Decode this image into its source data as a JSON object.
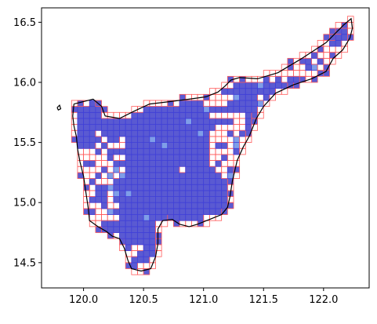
{
  "chart_data": {
    "type": "heatmap",
    "title": "",
    "xlabel": "",
    "ylabel": "",
    "xlim": [
      119.65,
      122.38
    ],
    "ylim": [
      14.29,
      16.62
    ],
    "x_ticks": [
      "120.0",
      "120.5",
      "121.0",
      "121.5",
      "122.0"
    ],
    "y_ticks": [
      "14.5",
      "15.0",
      "15.5",
      "16.0",
      "16.5"
    ],
    "grid": false,
    "legend": "none",
    "cell_size_deg": 0.05,
    "cell_fill_color": "#5a5ad2",
    "cell_fill_light_color": "#7f9ee8",
    "cell_edge_color": "#ff5a5a",
    "inner_cell_edge_color": "#4040d8",
    "boundary_color": "#000000",
    "boundary": [
      [
        119.92,
        15.82
      ],
      [
        120.08,
        15.86
      ],
      [
        120.15,
        15.8
      ],
      [
        120.18,
        15.72
      ],
      [
        120.3,
        15.7
      ],
      [
        120.42,
        15.76
      ],
      [
        120.55,
        15.82
      ],
      [
        120.72,
        15.84
      ],
      [
        120.88,
        15.86
      ],
      [
        121.02,
        15.88
      ],
      [
        121.12,
        15.92
      ],
      [
        121.18,
        15.97
      ],
      [
        121.23,
        16.02
      ],
      [
        121.3,
        16.04
      ],
      [
        121.45,
        16.03
      ],
      [
        121.62,
        16.08
      ],
      [
        121.82,
        16.2
      ],
      [
        122.02,
        16.33
      ],
      [
        122.17,
        16.48
      ],
      [
        122.23,
        16.53
      ],
      [
        122.24,
        16.45
      ],
      [
        122.22,
        16.37
      ],
      [
        122.16,
        16.27
      ],
      [
        122.08,
        16.2
      ],
      [
        122.02,
        16.09
      ],
      [
        121.9,
        16.03
      ],
      [
        121.75,
        15.98
      ],
      [
        121.6,
        15.91
      ],
      [
        121.5,
        15.8
      ],
      [
        121.44,
        15.7
      ],
      [
        121.38,
        15.55
      ],
      [
        121.33,
        15.46
      ],
      [
        121.28,
        15.35
      ],
      [
        121.24,
        15.18
      ],
      [
        121.22,
        15.05
      ],
      [
        121.2,
        14.96
      ],
      [
        121.15,
        14.9
      ],
      [
        121.05,
        14.86
      ],
      [
        120.95,
        14.82
      ],
      [
        120.88,
        14.8
      ],
      [
        120.8,
        14.82
      ],
      [
        120.74,
        14.86
      ],
      [
        120.66,
        14.85
      ],
      [
        120.62,
        14.78
      ],
      [
        120.62,
        14.66
      ],
      [
        120.6,
        14.55
      ],
      [
        120.56,
        14.45
      ],
      [
        120.48,
        14.43
      ],
      [
        120.4,
        14.45
      ],
      [
        120.37,
        14.52
      ],
      [
        120.34,
        14.62
      ],
      [
        120.3,
        14.7
      ],
      [
        120.24,
        14.72
      ],
      [
        120.19,
        14.76
      ],
      [
        120.12,
        14.8
      ],
      [
        120.05,
        14.85
      ],
      [
        120.04,
        14.95
      ],
      [
        120.02,
        15.08
      ],
      [
        120.0,
        15.22
      ],
      [
        119.97,
        15.34
      ],
      [
        119.95,
        15.45
      ],
      [
        119.94,
        15.55
      ],
      [
        119.92,
        15.64
      ],
      [
        119.91,
        15.72
      ],
      [
        119.92,
        15.82
      ]
    ],
    "island": [
      [
        119.78,
        15.79
      ],
      [
        119.8,
        15.81
      ],
      [
        119.81,
        15.78
      ],
      [
        119.79,
        15.77
      ],
      [
        119.78,
        15.79
      ]
    ],
    "empty_cell_regions": [
      {
        "x": [
          120.02,
          120.3
        ],
        "y": [
          14.85,
          15.5
        ]
      },
      {
        "x": [
          120.15,
          120.35
        ],
        "y": [
          15.2,
          15.55
        ]
      },
      {
        "x": [
          121.05,
          121.25
        ],
        "y": [
          15.2,
          15.65
        ]
      },
      {
        "x": [
          121.2,
          121.35
        ],
        "y": [
          15.45,
          15.75
        ]
      },
      {
        "x": [
          120.98,
          121.18
        ],
        "y": [
          15.72,
          15.95
        ]
      },
      {
        "x": [
          120.7,
          120.95
        ],
        "y": [
          15.85,
          16.02
        ]
      },
      {
        "x": [
          120.4,
          120.55
        ],
        "y": [
          14.45,
          14.66
        ]
      },
      {
        "x": [
          121.42,
          121.52
        ],
        "y": [
          15.8,
          15.9
        ]
      },
      {
        "x": [
          121.55,
          122.1
        ],
        "y": [
          16.0,
          16.45
        ]
      }
    ]
  }
}
